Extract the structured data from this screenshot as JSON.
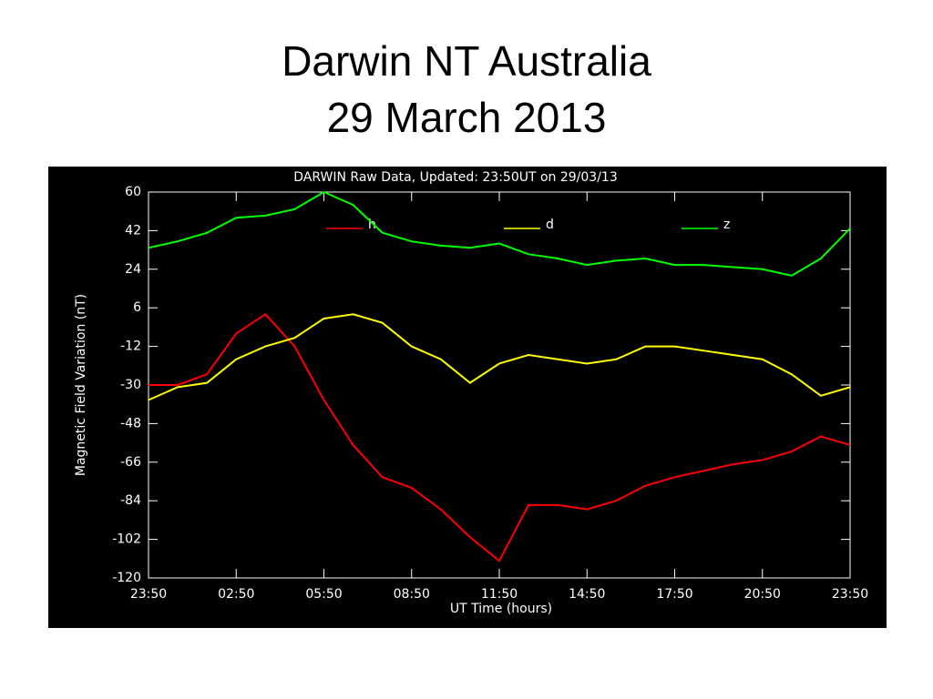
{
  "chart_data": {
    "type": "line",
    "title": "Darwin NT Australia",
    "subtitle": "29 March 2013",
    "plot_title": "DARWIN Raw Data, Updated: 23:50UT on 29/03/13",
    "xlabel": "UT Time (hours)",
    "ylabel": "Magnetic Field Variation (nT)",
    "x": [
      0,
      1,
      2,
      3,
      4,
      5,
      6,
      7,
      8,
      9,
      10,
      11,
      12,
      13,
      14,
      15,
      16,
      17,
      18,
      19,
      20,
      21,
      22,
      23,
      24
    ],
    "xlim": [
      0,
      24
    ],
    "xticks": [
      {
        "value": 0,
        "label": "23:50"
      },
      {
        "value": 3,
        "label": "02:50"
      },
      {
        "value": 6,
        "label": "05:50"
      },
      {
        "value": 9,
        "label": "08:50"
      },
      {
        "value": 12,
        "label": "11:50"
      },
      {
        "value": 15,
        "label": "14:50"
      },
      {
        "value": 18,
        "label": "17:50"
      },
      {
        "value": 21,
        "label": "20:50"
      },
      {
        "value": 24,
        "label": "23:50"
      }
    ],
    "ylim": [
      -120,
      60
    ],
    "yticks": [
      60,
      42,
      24,
      6,
      -12,
      -30,
      -48,
      -66,
      -84,
      -102,
      -120
    ],
    "series": [
      {
        "name": "h",
        "color": "#ff0000",
        "values": [
          -30,
          -30,
          -25,
          -6,
          3,
          -12,
          -37,
          -58,
          -73,
          -78,
          -88,
          -101,
          -112,
          -86,
          -86,
          -88,
          -84,
          -77,
          -73,
          -70,
          -67,
          -65,
          -61,
          -54,
          -58
        ]
      },
      {
        "name": "d",
        "color": "#ffff00",
        "values": [
          -37,
          -31,
          -29,
          -18,
          -12,
          -8,
          1,
          3,
          -1,
          -12,
          -18,
          -29,
          -20,
          -16,
          -18,
          -20,
          -18,
          -12,
          -12,
          -14,
          -16,
          -18,
          -25,
          -35,
          -31
        ]
      },
      {
        "name": "z",
        "color": "#00ff00",
        "values": [
          34,
          37,
          41,
          48,
          49,
          52,
          60,
          54,
          41,
          37,
          35,
          34,
          36,
          31,
          29,
          26,
          28,
          29,
          26,
          26,
          25,
          24,
          21,
          29,
          43
        ]
      }
    ]
  }
}
